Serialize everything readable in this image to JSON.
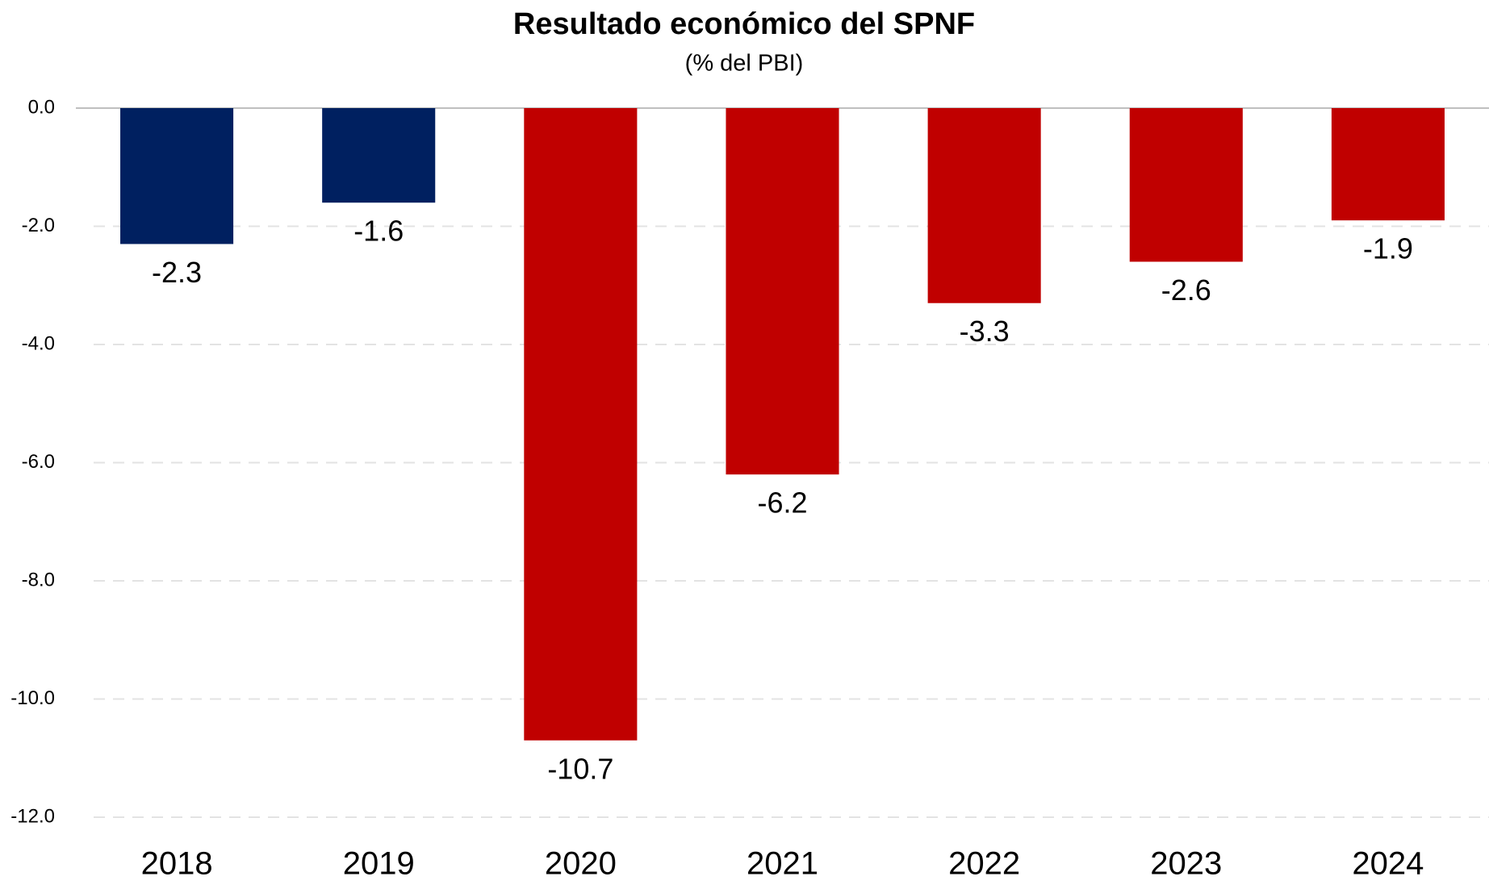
{
  "chart_data": {
    "type": "bar",
    "title": "Resultado económico del SPNF",
    "subtitle": "(% del PBI)",
    "categories": [
      "2018",
      "2019",
      "2020",
      "2021",
      "2022",
      "2023",
      "2024"
    ],
    "values": [
      -2.3,
      -1.6,
      -10.7,
      -6.2,
      -3.3,
      -2.6,
      -1.9
    ],
    "colors": [
      "#002060",
      "#002060",
      "#c00000",
      "#c00000",
      "#c00000",
      "#c00000",
      "#c00000"
    ],
    "ylim": [
      -12,
      0
    ],
    "yticks": [
      {
        "value": 0,
        "label": "0.0"
      },
      {
        "value": -2,
        "label": "-2.0"
      },
      {
        "value": -4,
        "label": "-4.0"
      },
      {
        "value": -6,
        "label": "-6.0"
      },
      {
        "value": -8,
        "label": "-8.0"
      },
      {
        "value": -10,
        "label": "-10.0"
      },
      {
        "value": -12,
        "label": "-12.0"
      }
    ],
    "grid": true
  }
}
